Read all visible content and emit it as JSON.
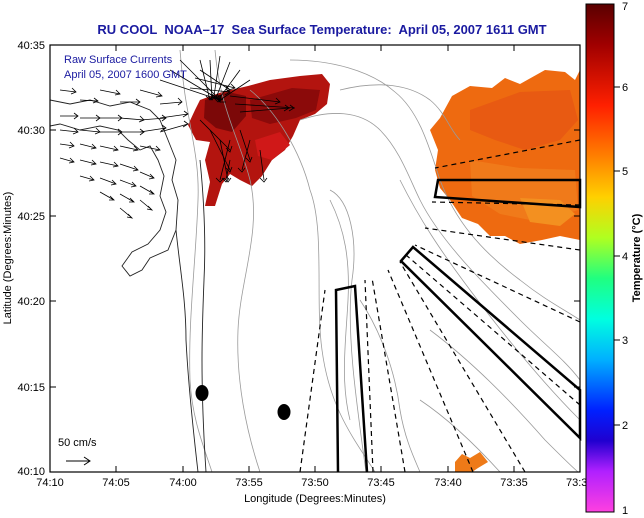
{
  "title": "RU COOL  NOAA–17  Sea Surface Temperature:  April 05, 2007 1611 GMT",
  "legend": {
    "line1": "Raw Surface Currents",
    "line2": "April 05, 2007 1600 GMT"
  },
  "scale_label": "50 cm/s",
  "x_axis": {
    "label": "Longitude (Degrees:Minutes)",
    "ticks": [
      "74:10",
      "74:05",
      "74:00",
      "73:55",
      "73:50",
      "73:45",
      "73:40",
      "73:35",
      "73:3"
    ]
  },
  "y_axis": {
    "label": "Latitude (Degrees:Minutes)",
    "ticks": [
      "40:35",
      "40:30",
      "40:25",
      "40:20",
      "40:15",
      "40:10"
    ]
  },
  "colorbar": {
    "label": "Temperature (°C)",
    "ticks": [
      "7",
      "6",
      "5",
      "4",
      "3",
      "2",
      "1"
    ]
  },
  "colors": {
    "title": "#1a1aa0",
    "sst_warm": "#ee6a10",
    "sst_hot": "#8b0a0a",
    "sst_mid": "#d01818"
  }
}
